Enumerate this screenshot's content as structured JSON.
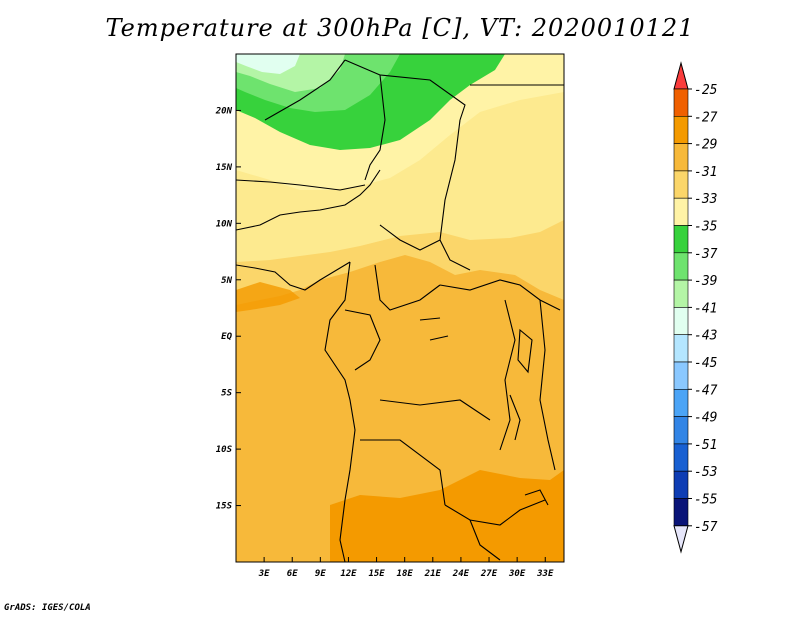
{
  "title": "Temperature at 300hPa [C], VT: 2020010121",
  "credit": "GrADS: IGES/COLA",
  "chart_data": {
    "type": "heatmap",
    "title": "Temperature at 300hPa [C], VT: 2020010121",
    "variable": "Temperature at 300hPa [C]",
    "valid_time": "2020010121",
    "lon_range": [
      0,
      35
    ],
    "lat_range": [
      -20,
      25
    ],
    "x_ticks": [
      "3E",
      "6E",
      "9E",
      "12E",
      "15E",
      "18E",
      "21E",
      "24E",
      "27E",
      "30E",
      "33E"
    ],
    "x_tick_values": [
      3,
      6,
      9,
      12,
      15,
      18,
      21,
      24,
      27,
      30,
      33
    ],
    "y_ticks": [
      "20N",
      "15N",
      "10N",
      "5N",
      "EQ",
      "5S",
      "10S",
      "15S"
    ],
    "y_tick_values": [
      20,
      15,
      10,
      5,
      0,
      -5,
      -10,
      -15
    ],
    "colorbar": {
      "labels": [
        "-25",
        "-27",
        "-29",
        "-31",
        "-33",
        "-35",
        "-37",
        "-39",
        "-41",
        "-43",
        "-45",
        "-47",
        "-49",
        "-51",
        "-53",
        "-55",
        "-57"
      ],
      "colors": [
        "#fa3c3c",
        "#f06000",
        "#f49a00",
        "#f7b93a",
        "#fbd66a",
        "#fff3a6",
        "#37d23c",
        "#6ee36e",
        "#b4f5a6",
        "#e1fff0",
        "#b4e6ff",
        "#8ac8ff",
        "#4ba4f6",
        "#3285e6",
        "#1860d2",
        "#0e3db4",
        "#0a1478"
      ],
      "over_color": "#fa3c3c",
      "under_color": "#e6e6fa"
    },
    "regions": [
      {
        "band": "-27 to -29",
        "area": "south and centre (most of domain)"
      },
      {
        "band": "-29 to -31",
        "area": "Gulf of Guinea to Sahel belt, east Africa"
      },
      {
        "band": "-31 to -33",
        "area": "Sahara band ~12N-20N"
      },
      {
        "band": "-33 to -35",
        "area": "~17N-20N west"
      },
      {
        "band": "-35 to -37",
        "area": "~20N-24N"
      },
      {
        "band": "-37 to -43",
        "area": "north-west corner"
      }
    ]
  }
}
